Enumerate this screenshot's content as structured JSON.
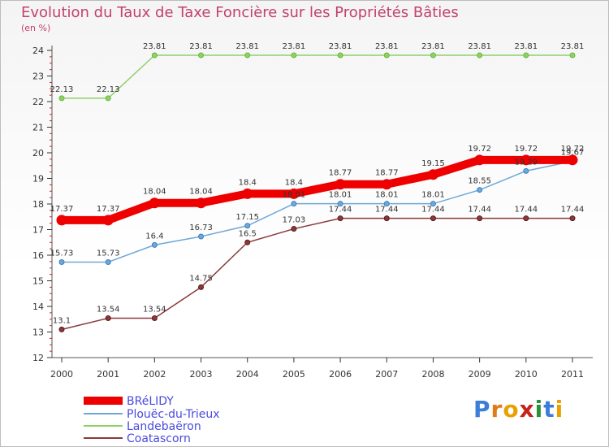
{
  "chart_data": {
    "type": "line",
    "title": "Evolution du Taux de Taxe Foncière sur les Propriétés Bâties",
    "ylabel": "(en %)",
    "x": [
      "2000",
      "2001",
      "2002",
      "2003",
      "2004",
      "2005",
      "2006",
      "2007",
      "2008",
      "2009",
      "2010",
      "2011"
    ],
    "ylim": [
      12,
      24
    ],
    "yticks": [
      12,
      13,
      14,
      15,
      16,
      17,
      18,
      19,
      20,
      21,
      22,
      23,
      24
    ],
    "grid": false,
    "legend_position": "bottom-left",
    "series": [
      {
        "name": "BRéLIDY",
        "color": "#ee0000",
        "emphasis": true,
        "values": [
          17.37,
          17.37,
          18.04,
          18.04,
          18.4,
          18.4,
          18.77,
          18.77,
          19.15,
          19.72,
          19.72,
          19.72
        ],
        "labels": [
          "17.37",
          "17.37",
          "18.04",
          "18.04",
          "18.4",
          "18.4",
          "18.77",
          "18.77",
          "19.15",
          "19.72",
          "19.72",
          "19.72"
        ]
      },
      {
        "name": "Plouëc-du-Trieux",
        "color": "#6fa8d8",
        "marker": "#3d7fc0",
        "values": [
          15.73,
          15.73,
          16.4,
          16.73,
          17.15,
          18.01,
          18.01,
          18.01,
          18.01,
          18.55,
          19.29,
          19.67
        ],
        "labels": [
          "15.73",
          "15.73",
          "16.4",
          "16.73",
          "17.15",
          "18.01",
          "18.01",
          "18.01",
          "18.01",
          "18.55",
          "19.29",
          "19.67"
        ]
      },
      {
        "name": "Landebaëron",
        "color": "#8fd068",
        "marker": "#6ab83a",
        "values": [
          22.13,
          22.13,
          23.81,
          23.81,
          23.81,
          23.81,
          23.81,
          23.81,
          23.81,
          23.81,
          23.81,
          23.81
        ],
        "labels": [
          "22.13",
          "22.13",
          "23.81",
          "23.81",
          "23.81",
          "23.81",
          "23.81",
          "23.81",
          "23.81",
          "23.81",
          "23.81",
          "23.81"
        ]
      },
      {
        "name": "Coatascorn",
        "color": "#8a3a3a",
        "marker": "#5a1a1a",
        "values": [
          13.1,
          13.54,
          13.54,
          14.75,
          16.5,
          17.03,
          17.44,
          17.44,
          17.44,
          17.44,
          17.44,
          17.44
        ],
        "labels": [
          "13.1",
          "13.54",
          "13.54",
          "14.75",
          "16.5",
          "17.03",
          "17.44",
          "17.44",
          "17.44",
          "17.44",
          "17.44",
          "17.44"
        ]
      }
    ]
  },
  "logo": {
    "letters": [
      "P",
      "r",
      "o",
      "x",
      "i",
      "t",
      "i"
    ],
    "colors": [
      "#3b7dd8",
      "#e07a1a",
      "#e8a100",
      "#c8201a",
      "#2a8f3a",
      "#3b7dd8",
      "#e8a100"
    ]
  }
}
